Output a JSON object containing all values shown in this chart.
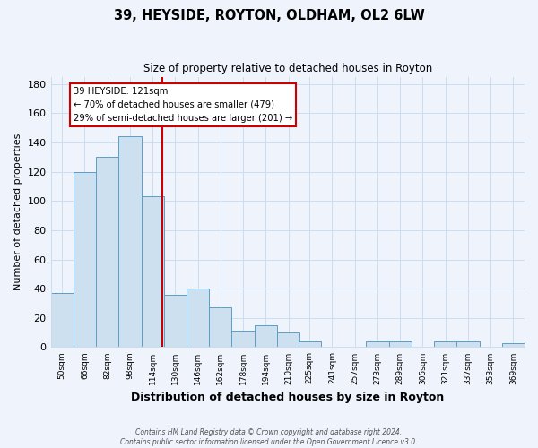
{
  "title": "39, HEYSIDE, ROYTON, OLDHAM, OL2 6LW",
  "subtitle": "Size of property relative to detached houses in Royton",
  "xlabel": "Distribution of detached houses by size in Royton",
  "ylabel": "Number of detached properties",
  "bin_labels": [
    "50sqm",
    "66sqm",
    "82sqm",
    "98sqm",
    "114sqm",
    "130sqm",
    "146sqm",
    "162sqm",
    "178sqm",
    "194sqm",
    "210sqm",
    "225sqm",
    "241sqm",
    "257sqm",
    "273sqm",
    "289sqm",
    "305sqm",
    "321sqm",
    "337sqm",
    "353sqm",
    "369sqm"
  ],
  "bin_centers": [
    50,
    66,
    82,
    98,
    114,
    130,
    146,
    162,
    178,
    194,
    210,
    225,
    241,
    257,
    273,
    289,
    305,
    321,
    337,
    353,
    369
  ],
  "bin_width": 16,
  "bar_values": [
    37,
    120,
    130,
    144,
    103,
    36,
    40,
    27,
    11,
    15,
    10,
    4,
    0,
    0,
    4,
    4,
    0,
    4,
    4,
    0,
    3
  ],
  "bar_color": "#cce0f0",
  "bar_edge_color": "#5b9ec9",
  "red_line_x": 121,
  "annotation_title": "39 HEYSIDE: 121sqm",
  "annotation_line1": "← 70% of detached houses are smaller (479)",
  "annotation_line2": "29% of semi-detached houses are larger (201) →",
  "annotation_box_color": "#ffffff",
  "annotation_box_edge": "#cc0000",
  "ylim": [
    0,
    185
  ],
  "yticks": [
    0,
    20,
    40,
    60,
    80,
    100,
    120,
    140,
    160,
    180
  ],
  "xlim_left": 42,
  "xlim_right": 377,
  "grid_color": "#ccddf0",
  "background_color": "#eef3fc",
  "footer1": "Contains HM Land Registry data © Crown copyright and database right 2024.",
  "footer2": "Contains public sector information licensed under the Open Government Licence v3.0."
}
